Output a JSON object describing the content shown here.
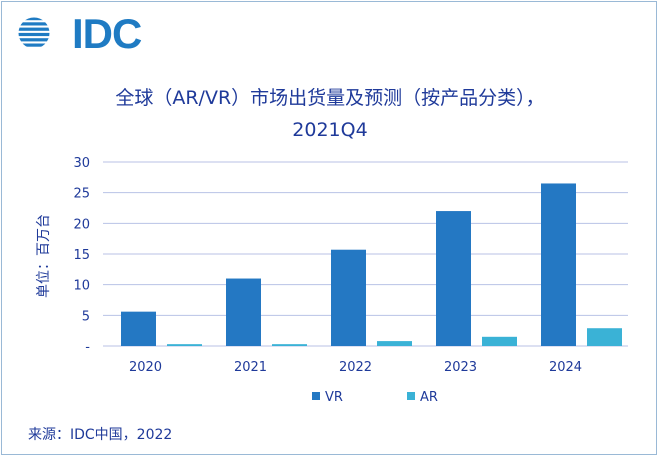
{
  "logo": {
    "text": "IDC"
  },
  "footer": {
    "source": "来源：IDC中国，2022"
  },
  "colors": {
    "vr": "#2478c3",
    "ar": "#3ab2d6",
    "grid": "#b8c2e6",
    "text": "#1f3a9a"
  },
  "chart_data": {
    "type": "bar",
    "title_line1": "全球（AR/VR）市场出货量及预测（按产品分类），",
    "title_line2": "2021Q4",
    "ylabel": "单位：百万台",
    "xlabel": "",
    "categories": [
      "2020",
      "2021",
      "2022",
      "2023",
      "2024"
    ],
    "series": [
      {
        "name": "VR",
        "values": [
          5.6,
          11.0,
          15.7,
          22.0,
          26.5
        ]
      },
      {
        "name": "AR",
        "values": [
          0.3,
          0.3,
          0.8,
          1.5,
          2.9
        ]
      }
    ],
    "ylim": [
      0,
      30
    ],
    "yticks": [
      {
        "value": 0,
        "label": "-"
      },
      {
        "value": 5,
        "label": "5"
      },
      {
        "value": 10,
        "label": "10"
      },
      {
        "value": 15,
        "label": "15"
      },
      {
        "value": 20,
        "label": "20"
      },
      {
        "value": 25,
        "label": "25"
      },
      {
        "value": 30,
        "label": "30"
      }
    ],
    "grid": true,
    "legend_position": "bottom-center"
  }
}
